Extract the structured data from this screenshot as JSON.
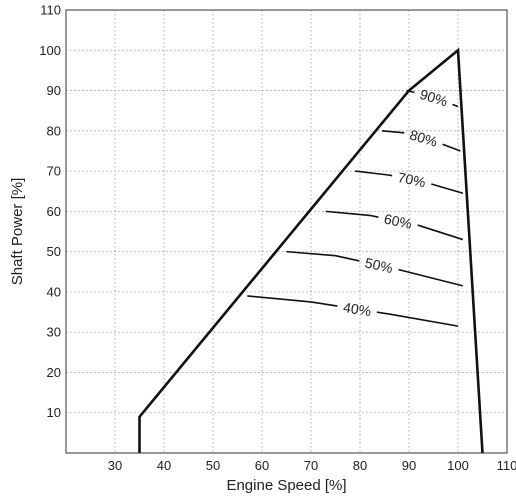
{
  "chart_data": {
    "type": "line",
    "xlabel": "Engine Speed [%]",
    "ylabel": "Shaft Power [%]",
    "xlim": [
      20,
      110
    ],
    "ylim": [
      0,
      110
    ],
    "x_ticks": [
      "30",
      "40",
      "50",
      "60",
      "70",
      "80",
      "90",
      "100",
      "110"
    ],
    "y_ticks": [
      "10",
      "20",
      "30",
      "40",
      "50",
      "60",
      "70",
      "80",
      "90",
      "100",
      "110"
    ],
    "grid": true,
    "envelope": {
      "x": [
        35,
        35,
        90,
        100,
        105
      ],
      "y": [
        0,
        9,
        90,
        100,
        0
      ]
    },
    "series": [
      {
        "name": "90%",
        "x": [
          89.5,
          93,
          97,
          100
        ],
        "y": [
          90,
          89,
          87.5,
          86
        ]
      },
      {
        "name": "80%",
        "x": [
          84.5,
          89,
          95,
          100.5
        ],
        "y": [
          80,
          79.5,
          77.5,
          75
        ]
      },
      {
        "name": "70%",
        "x": [
          79,
          86,
          94,
          101
        ],
        "y": [
          70,
          69,
          67,
          64.5
        ]
      },
      {
        "name": "60%",
        "x": [
          73,
          82,
          92,
          101
        ],
        "y": [
          60,
          59,
          56.5,
          53
        ]
      },
      {
        "name": "50%",
        "x": [
          65,
          75,
          88,
          101
        ],
        "y": [
          50,
          49,
          45.5,
          41.5
        ]
      },
      {
        "name": "40%",
        "x": [
          57,
          70,
          86,
          100
        ],
        "y": [
          39,
          37.5,
          34.5,
          31.5
        ]
      }
    ]
  }
}
